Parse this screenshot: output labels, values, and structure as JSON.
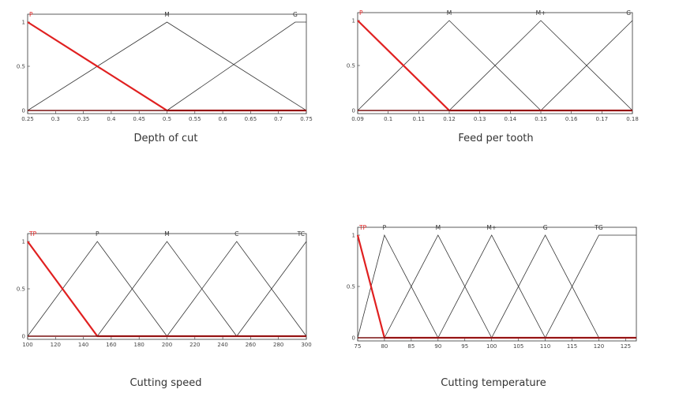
{
  "charts": [
    {
      "caption": "Depth of cut",
      "xlim": [
        0.25,
        0.75
      ],
      "xticks": [
        "0.25",
        "0.3",
        "0.35",
        "0.4",
        "0.45",
        "0.5",
        "0.55",
        "0.6",
        "0.65",
        "0.7",
        "0.75"
      ],
      "yticks": [
        "0",
        "0.5",
        "1"
      ]
    },
    {
      "caption": "Feed per tooth",
      "xlim": [
        0.09,
        0.18
      ],
      "xticks": [
        "0.09",
        "0.1",
        "0.11",
        "0.12",
        "0.13",
        "0.14",
        "0.15",
        "0.16",
        "0.17",
        "0.18"
      ],
      "yticks": [
        "0",
        "0.5",
        "1"
      ]
    },
    {
      "caption": "Cutting speed",
      "xlim": [
        100,
        300
      ],
      "xticks": [
        "100",
        "120",
        "140",
        "160",
        "180",
        "200",
        "220",
        "240",
        "260",
        "280",
        "300"
      ],
      "yticks": [
        "0",
        "0.5",
        "1"
      ]
    },
    {
      "caption": "Cutting temperature",
      "xlim": [
        75,
        127
      ],
      "xticks": [
        "75",
        "80",
        "85",
        "90",
        "95",
        "100",
        "105",
        "110",
        "115",
        "120",
        "125"
      ],
      "yticks": [
        "0",
        "0.5",
        "1"
      ]
    }
  ],
  "chart_data": [
    {
      "type": "line",
      "xlim": [
        0.25,
        0.75
      ],
      "ylim": [
        0,
        1
      ],
      "series": [
        {
          "name": "P",
          "x": [
            0.25,
            0.25,
            0.5,
            0.75
          ],
          "y": [
            1,
            1,
            0,
            0
          ],
          "highlight": true
        },
        {
          "name": "M",
          "x": [
            0.25,
            0.5,
            0.75
          ],
          "y": [
            0,
            1,
            0
          ]
        },
        {
          "name": "G",
          "x": [
            0.5,
            0.73,
            0.75
          ],
          "y": [
            0,
            1,
            1
          ]
        }
      ],
      "colors": {
        "highlight": "#e02020",
        "normal": "#333333"
      }
    },
    {
      "type": "line",
      "xlim": [
        0.09,
        0.18
      ],
      "ylim": [
        0,
        1
      ],
      "series": [
        {
          "name": "P",
          "x": [
            0.09,
            0.09,
            0.12,
            0.18
          ],
          "y": [
            1,
            1,
            0,
            0
          ],
          "highlight": true
        },
        {
          "name": "M",
          "x": [
            0.09,
            0.12,
            0.15
          ],
          "y": [
            0,
            1,
            0
          ]
        },
        {
          "name": "M+",
          "x": [
            0.12,
            0.15,
            0.18
          ],
          "y": [
            0,
            1,
            0
          ]
        },
        {
          "name": "G",
          "x": [
            0.15,
            0.18
          ],
          "y": [
            0,
            1
          ]
        }
      ],
      "colors": {
        "highlight": "#e02020",
        "normal": "#333333"
      }
    },
    {
      "type": "line",
      "xlim": [
        100,
        300
      ],
      "ylim": [
        0,
        1
      ],
      "series": [
        {
          "name": "TP",
          "x": [
            100,
            150,
            300
          ],
          "y": [
            1,
            0,
            0
          ],
          "highlight": true
        },
        {
          "name": "P",
          "x": [
            100,
            150,
            200
          ],
          "y": [
            0,
            1,
            0
          ]
        },
        {
          "name": "M",
          "x": [
            150,
            200,
            250
          ],
          "y": [
            0,
            1,
            0
          ]
        },
        {
          "name": "C",
          "x": [
            200,
            250,
            300
          ],
          "y": [
            0,
            1,
            0
          ]
        },
        {
          "name": "TC",
          "x": [
            250,
            300
          ],
          "y": [
            0,
            1
          ]
        }
      ],
      "colors": {
        "highlight": "#e02020",
        "normal": "#333333"
      }
    },
    {
      "type": "line",
      "xlim": [
        75,
        127
      ],
      "ylim": [
        0,
        1
      ],
      "series": [
        {
          "name": "TP",
          "x": [
            75,
            80,
            127
          ],
          "y": [
            1,
            0,
            0
          ],
          "highlight": true
        },
        {
          "name": "P",
          "x": [
            75,
            80,
            90
          ],
          "y": [
            0,
            1,
            0
          ]
        },
        {
          "name": "M",
          "x": [
            80,
            90,
            100
          ],
          "y": [
            0,
            1,
            0
          ]
        },
        {
          "name": "M+",
          "x": [
            90,
            100,
            110
          ],
          "y": [
            0,
            1,
            0
          ]
        },
        {
          "name": "G",
          "x": [
            100,
            110,
            120
          ],
          "y": [
            0,
            1,
            0
          ]
        },
        {
          "name": "TG",
          "x": [
            110,
            120,
            127
          ],
          "y": [
            0,
            1,
            1
          ]
        }
      ],
      "colors": {
        "highlight": "#e02020",
        "normal": "#333333"
      }
    }
  ]
}
